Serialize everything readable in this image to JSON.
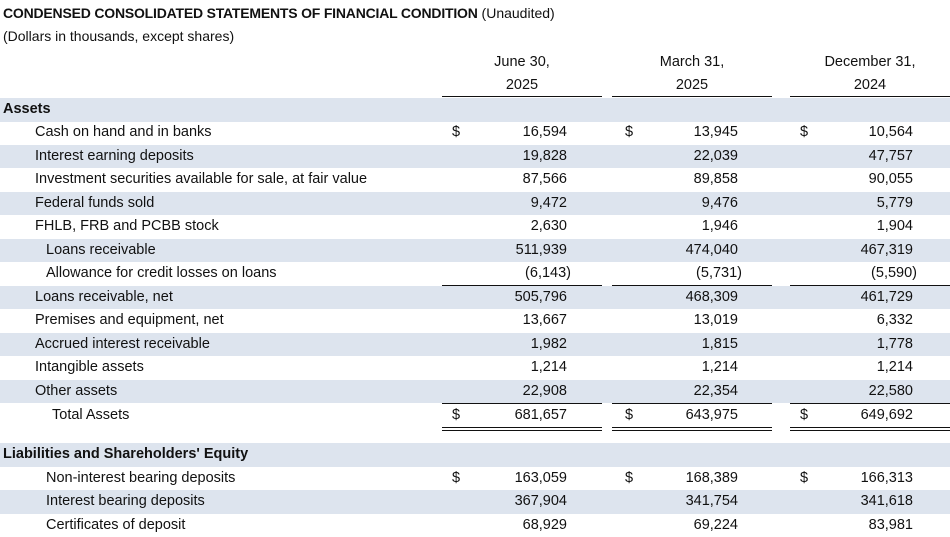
{
  "header": {
    "title_bold": "CONDENSED CONSOLIDATED STATEMENTS OF FINANCIAL CONDITION",
    "title_rest": " (Unaudited)",
    "subtitle": "(Dollars in thousands, except shares)"
  },
  "columns": [
    {
      "line1": "June 30,",
      "line2": "2025"
    },
    {
      "line1": "March 31,",
      "line2": "2025"
    },
    {
      "line1": "December 31,",
      "line2": "2024"
    }
  ],
  "currency_symbol": "$",
  "sections": {
    "assets": "Assets",
    "liabilities": "Liabilities and Shareholders' Equity"
  },
  "rows": [
    {
      "label": "Cash on hand and in banks",
      "values": [
        "16,594",
        "13,945",
        "10,564"
      ]
    },
    {
      "label": "Interest earning deposits",
      "values": [
        "19,828",
        "22,039",
        "47,757"
      ]
    },
    {
      "label": "Investment securities available for sale, at fair value",
      "values": [
        "87,566",
        "89,858",
        "90,055"
      ]
    },
    {
      "label": "Federal funds sold",
      "values": [
        "9,472",
        "9,476",
        "5,779"
      ]
    },
    {
      "label": "FHLB, FRB and PCBB stock",
      "values": [
        "2,630",
        "1,946",
        "1,904"
      ]
    },
    {
      "label": "Loans receivable",
      "values": [
        "511,939",
        "474,040",
        "467,319"
      ]
    },
    {
      "label": "Allowance for credit losses on loans",
      "values": [
        "(6,143)",
        "(5,731)",
        "(5,590)"
      ]
    },
    {
      "label": "Loans receivable, net",
      "values": [
        "505,796",
        "468,309",
        "461,729"
      ]
    },
    {
      "label": "Premises and equipment, net",
      "values": [
        "13,667",
        "13,019",
        "6,332"
      ]
    },
    {
      "label": "Accrued interest receivable",
      "values": [
        "1,982",
        "1,815",
        "1,778"
      ]
    },
    {
      "label": "Intangible assets",
      "values": [
        "1,214",
        "1,214",
        "1,214"
      ]
    },
    {
      "label": "Other assets",
      "values": [
        "22,908",
        "22,354",
        "22,580"
      ]
    },
    {
      "label": "Total Assets",
      "values": [
        "681,657",
        "643,975",
        "649,692"
      ]
    },
    {
      "label": "Non-interest bearing deposits",
      "values": [
        "163,059",
        "168,389",
        "166,313"
      ]
    },
    {
      "label": "Interest bearing deposits",
      "values": [
        "367,904",
        "341,754",
        "341,618"
      ]
    },
    {
      "label": "Certificates of deposit",
      "values": [
        "68,929",
        "69,224",
        "83,981"
      ]
    }
  ]
}
